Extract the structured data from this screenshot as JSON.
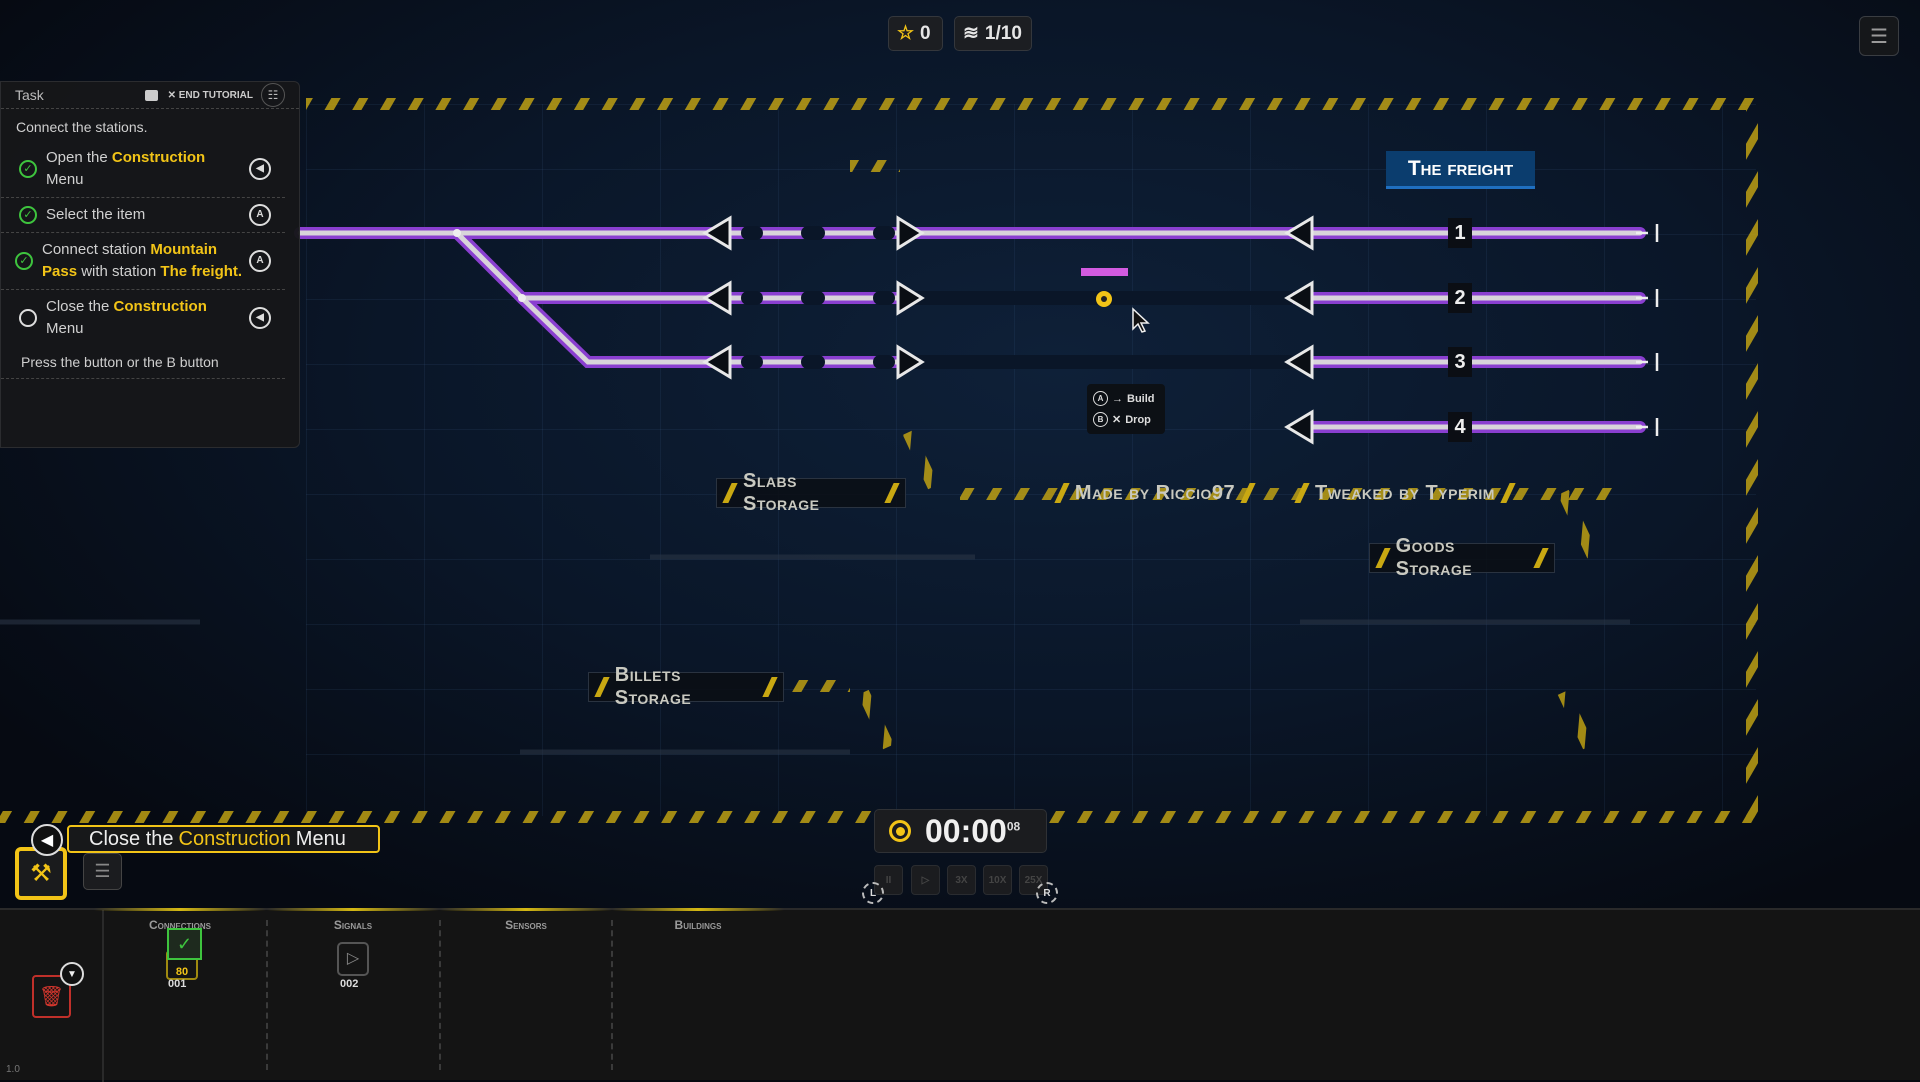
{
  "hud": {
    "stars": "0",
    "level": "1/10",
    "star_icon": "star-icon",
    "layers_icon": "layers-icon",
    "menu_icon": "list-menu-icon"
  },
  "task_panel": {
    "title": "Task",
    "end_tutorial": "END TUTORIAL",
    "intro": "Connect the stations.",
    "items": [
      {
        "done": true,
        "parts": [
          "Open the ",
          "Construction",
          " Menu"
        ],
        "button": "back"
      },
      {
        "done": true,
        "parts": [
          "Select the item",
          "",
          ""
        ],
        "button": "A"
      },
      {
        "done": true,
        "parts": [
          "Connect station ",
          "Mountain Pass",
          " with station ",
          "The freight."
        ],
        "button": "A"
      },
      {
        "done": false,
        "parts": [
          "Close the ",
          "Construction",
          " Menu"
        ],
        "button": "back"
      }
    ],
    "note": "Press the button or the B button"
  },
  "map": {
    "station_name": "The freight",
    "platforms": [
      "1",
      "2",
      "3",
      "4"
    ],
    "labels": {
      "slabs": "Slabs Storage",
      "made_by": "Made by Riccio97",
      "tweaked_by": "Tweaked by Typerim",
      "goods": "Goods Storage",
      "billets": "Billets Storage"
    },
    "tooltip": {
      "a_key": "A",
      "build": "Build",
      "b_key": "B",
      "drop": "Drop"
    },
    "track_color": "#8a3fd0",
    "accent": "#f2c417"
  },
  "banner": {
    "pre": "Close the",
    "highlight": "Construction",
    "post": "Menu"
  },
  "timer": {
    "time": "00:00",
    "fraction": "08"
  },
  "speed_buttons": [
    "II",
    "▷",
    "3X",
    "10X",
    "25X"
  ],
  "shoulder": {
    "left": "L",
    "right": "R"
  },
  "bottom": {
    "categories": [
      "Connections",
      "Signals",
      "Sensors",
      "Buildings"
    ],
    "connections_item": {
      "cost": "80",
      "count": "001"
    },
    "signals_item": {
      "count": "002"
    },
    "version": "1.0"
  }
}
